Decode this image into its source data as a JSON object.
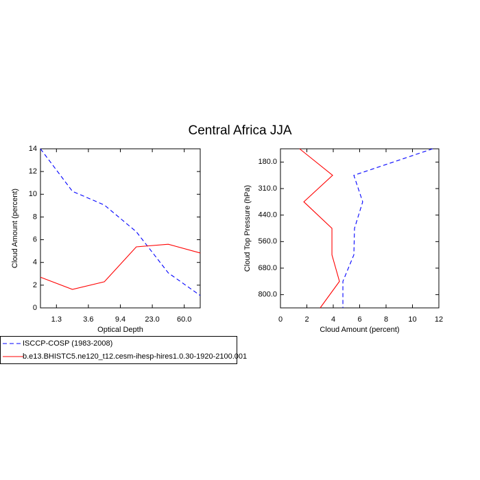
{
  "chart_data": [
    {
      "type": "line",
      "title": "Central Africa JJA",
      "x_label": "Optical Depth",
      "y_label": "Cloud Amount (percent)",
      "x": [
        0,
        1,
        2,
        3,
        4,
        5
      ],
      "xlim": [
        0,
        5
      ],
      "xticks": [
        {
          "value": 0.5,
          "label": "1.3"
        },
        {
          "value": 1.5,
          "label": "3.6"
        },
        {
          "value": 2.5,
          "label": "9.4"
        },
        {
          "value": 3.5,
          "label": "23.0"
        },
        {
          "value": 4.5,
          "label": "60.0"
        }
      ],
      "ylim": [
        0,
        14
      ],
      "yticks": [
        0,
        2,
        4,
        6,
        8,
        10,
        12,
        14
      ],
      "series": [
        {
          "name": "ISCCP-COSP (1983-2008)",
          "color": "#0000ff",
          "dashed": true,
          "values": [
            14,
            10.26,
            9.05,
            6.7,
            3.08,
            1.09
          ]
        },
        {
          "name": "b.e13.BHISTC5.ne120_t12.cesm-ihesp-hires1.0.30-1920-2100.001",
          "color": "#ff0000",
          "dashed": false,
          "values": [
            2.7,
            1.63,
            2.3,
            5.37,
            5.6,
            4.83
          ]
        }
      ]
    },
    {
      "type": "hline",
      "x_label": "Cloud Amount (percent)",
      "y_label": "Cloud Top Pressure (hPa)",
      "y": [
        0,
        1,
        2,
        3,
        4,
        5,
        6
      ],
      "ylim": [
        6,
        0
      ],
      "yticks": [
        {
          "value": 0.5,
          "label": "180.0"
        },
        {
          "value": 1.5,
          "label": "310.0"
        },
        {
          "value": 2.5,
          "label": "440.0"
        },
        {
          "value": 3.5,
          "label": "560.0"
        },
        {
          "value": 4.5,
          "label": "680.0"
        },
        {
          "value": 5.5,
          "label": "800.0"
        }
      ],
      "xlim": [
        0,
        12
      ],
      "xticks": [
        0,
        2,
        4,
        6,
        8,
        10,
        12
      ],
      "series": [
        {
          "color": "#0000ff",
          "dashed": true,
          "values": [
            11.53,
            5.56,
            6.23,
            5.61,
            5.56,
            4.73,
            4.73
          ]
        },
        {
          "color": "#ff0000",
          "dashed": false,
          "values": [
            1.45,
            3.95,
            1.77,
            3.9,
            3.9,
            4.47,
            3.01
          ]
        }
      ]
    }
  ]
}
